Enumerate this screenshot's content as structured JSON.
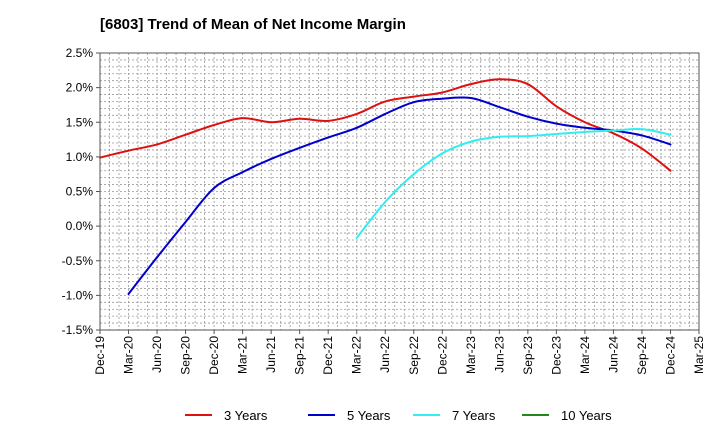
{
  "chart_data": {
    "type": "line",
    "title": "[6803]  Trend of Mean of Net Income Margin",
    "xlabel": "",
    "ylabel": "",
    "x_ticks": [
      "Dec-19",
      "Mar-20",
      "Jun-20",
      "Sep-20",
      "Dec-20",
      "Mar-21",
      "Jun-21",
      "Sep-21",
      "Dec-21",
      "Mar-22",
      "Jun-22",
      "Sep-22",
      "Dec-22",
      "Mar-23",
      "Jun-23",
      "Sep-23",
      "Dec-23",
      "Mar-24",
      "Jun-24",
      "Sep-24",
      "Dec-24",
      "Mar-25"
    ],
    "y_ticks": [
      "2.5%",
      "2.0%",
      "1.5%",
      "1.0%",
      "0.5%",
      "0.0%",
      "-0.5%",
      "-1.0%",
      "-1.5%"
    ],
    "ylim": [
      -1.5,
      2.5
    ],
    "grid": true,
    "legend_position": "bottom",
    "series": [
      {
        "name": "3 Years",
        "color": "#dd1111",
        "points": [
          [
            "Dec-19",
            0.99
          ],
          [
            "Mar-20",
            1.09
          ],
          [
            "Jun-20",
            1.18
          ],
          [
            "Sep-20",
            1.32
          ],
          [
            "Dec-20",
            1.46
          ],
          [
            "Mar-21",
            1.56
          ],
          [
            "Jun-21",
            1.5
          ],
          [
            "Sep-21",
            1.55
          ],
          [
            "Dec-21",
            1.52
          ],
          [
            "Mar-22",
            1.62
          ],
          [
            "Jun-22",
            1.8
          ],
          [
            "Sep-22",
            1.87
          ],
          [
            "Dec-22",
            1.93
          ],
          [
            "Mar-23",
            2.05
          ],
          [
            "Jun-23",
            2.12
          ],
          [
            "Sep-23",
            2.05
          ],
          [
            "Dec-23",
            1.73
          ],
          [
            "Mar-24",
            1.5
          ],
          [
            "Jun-24",
            1.34
          ],
          [
            "Sep-24",
            1.12
          ],
          [
            "Dec-24",
            0.8
          ]
        ]
      },
      {
        "name": "5 Years",
        "color": "#0000cc",
        "points": [
          [
            "Mar-20",
            -0.98
          ],
          [
            "Jun-20",
            -0.45
          ],
          [
            "Sep-20",
            0.06
          ],
          [
            "Dec-20",
            0.55
          ],
          [
            "Mar-21",
            0.78
          ],
          [
            "Jun-21",
            0.97
          ],
          [
            "Sep-21",
            1.13
          ],
          [
            "Dec-21",
            1.28
          ],
          [
            "Mar-22",
            1.42
          ],
          [
            "Jun-22",
            1.62
          ],
          [
            "Sep-22",
            1.79
          ],
          [
            "Dec-22",
            1.84
          ],
          [
            "Mar-23",
            1.85
          ],
          [
            "Jun-23",
            1.72
          ],
          [
            "Sep-23",
            1.58
          ],
          [
            "Dec-23",
            1.48
          ],
          [
            "Mar-24",
            1.42
          ],
          [
            "Jun-24",
            1.38
          ],
          [
            "Sep-24",
            1.31
          ],
          [
            "Dec-24",
            1.18
          ]
        ]
      },
      {
        "name": "7 Years",
        "color": "#33eeee",
        "points": [
          [
            "Mar-22",
            -0.17
          ],
          [
            "Jun-22",
            0.35
          ],
          [
            "Sep-22",
            0.75
          ],
          [
            "Dec-22",
            1.05
          ],
          [
            "Mar-23",
            1.22
          ],
          [
            "Jun-23",
            1.29
          ],
          [
            "Sep-23",
            1.3
          ],
          [
            "Dec-23",
            1.33
          ],
          [
            "Mar-24",
            1.36
          ],
          [
            "Jun-24",
            1.38
          ],
          [
            "Sep-24",
            1.4
          ],
          [
            "Dec-24",
            1.32
          ]
        ]
      },
      {
        "name": "10 Years",
        "color": "#228822",
        "points": []
      }
    ]
  }
}
